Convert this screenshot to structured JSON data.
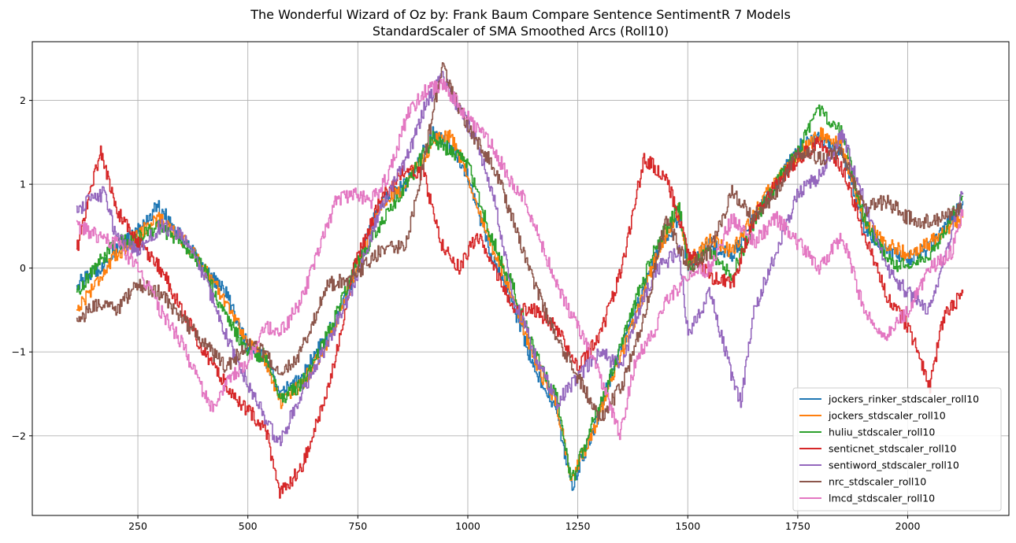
{
  "chart_data": {
    "type": "line",
    "title": "The Wonderful Wizard of Oz by: Frank Baum Compare Sentence SentimentR 7 Models",
    "subtitle": "StandardScaler of SMA Smoothed Arcs (Roll10)",
    "xlabel": "",
    "ylabel": "",
    "xlim": [
      10,
      2230
    ],
    "ylim": [
      -2.95,
      2.7
    ],
    "xticks": [
      250,
      500,
      750,
      1000,
      1250,
      1500,
      1750,
      2000
    ],
    "xtick_labels": [
      "250",
      "500",
      "750",
      "1000",
      "1250",
      "1500",
      "1750",
      "2000"
    ],
    "yticks": [
      2,
      1,
      0,
      -1,
      -2
    ],
    "ytick_labels": [
      "2",
      "1",
      "0",
      "−1",
      "−2"
    ],
    "grid": true,
    "legend_position": "bottom-right",
    "series": [
      {
        "name": "jockers_rinker_stdscaler_roll10",
        "color": "#1f77b4",
        "x": [
          110,
          150,
          200,
          250,
          295,
          350,
          400,
          450,
          500,
          540,
          575,
          620,
          680,
          740,
          800,
          860,
          920,
          960,
          1000,
          1050,
          1100,
          1150,
          1200,
          1235,
          1280,
          1330,
          1380,
          1430,
          1480,
          1500,
          1550,
          1600,
          1650,
          1700,
          1750,
          1800,
          1850,
          1900,
          1950,
          2000,
          2050,
          2125
        ],
        "y": [
          -0.2,
          -0.05,
          0.2,
          0.45,
          0.75,
          0.35,
          0.0,
          -0.3,
          -0.95,
          -1.1,
          -1.5,
          -1.3,
          -0.8,
          -0.1,
          0.8,
          1.0,
          1.6,
          1.5,
          1.1,
          0.2,
          -0.4,
          -1.2,
          -1.7,
          -2.6,
          -2.0,
          -1.2,
          -0.5,
          0.2,
          0.6,
          0.0,
          0.3,
          0.15,
          0.6,
          1.0,
          1.45,
          1.55,
          1.4,
          0.5,
          0.2,
          0.1,
          0.25,
          0.8
        ]
      },
      {
        "name": "jockers_stdscaler_roll10",
        "color": "#ff7f0e",
        "x": [
          110,
          150,
          200,
          250,
          295,
          350,
          400,
          450,
          500,
          540,
          575,
          620,
          680,
          740,
          800,
          860,
          920,
          960,
          1000,
          1050,
          1100,
          1150,
          1200,
          1235,
          1280,
          1330,
          1380,
          1430,
          1480,
          1500,
          1550,
          1600,
          1650,
          1700,
          1750,
          1800,
          1850,
          1900,
          1950,
          2000,
          2050,
          2125
        ],
        "y": [
          -0.5,
          -0.2,
          0.15,
          0.4,
          0.6,
          0.35,
          0.0,
          -0.4,
          -0.9,
          -1.1,
          -1.6,
          -1.4,
          -0.9,
          -0.1,
          0.7,
          1.0,
          1.5,
          1.6,
          1.1,
          0.3,
          -0.3,
          -1.1,
          -1.6,
          -2.5,
          -2.0,
          -1.3,
          -0.6,
          0.2,
          0.7,
          0.05,
          0.35,
          0.2,
          0.65,
          1.05,
          1.35,
          1.6,
          1.45,
          0.55,
          0.3,
          0.15,
          0.3,
          0.6
        ]
      },
      {
        "name": "huliu_stdscaler_roll10",
        "color": "#2ca02c",
        "x": [
          110,
          150,
          200,
          250,
          295,
          350,
          400,
          450,
          500,
          540,
          575,
          620,
          680,
          740,
          800,
          860,
          920,
          960,
          1000,
          1050,
          1100,
          1150,
          1200,
          1235,
          1280,
          1330,
          1380,
          1430,
          1480,
          1500,
          1550,
          1600,
          1650,
          1700,
          1750,
          1800,
          1850,
          1900,
          1950,
          2000,
          2050,
          2125
        ],
        "y": [
          -0.3,
          0.0,
          0.3,
          0.35,
          0.5,
          0.3,
          0.0,
          -0.6,
          -1.0,
          -1.05,
          -1.55,
          -1.4,
          -0.8,
          0.0,
          0.5,
          1.0,
          1.55,
          1.4,
          1.25,
          0.4,
          -0.2,
          -1.0,
          -1.5,
          -2.55,
          -1.9,
          -1.2,
          -0.4,
          0.3,
          0.75,
          0.0,
          0.2,
          -0.1,
          0.55,
          1.0,
          1.4,
          1.9,
          1.6,
          0.6,
          0.1,
          0.0,
          0.15,
          0.85
        ]
      },
      {
        "name": "senticnet_stdscaler_roll10",
        "color": "#d62728",
        "x": [
          110,
          140,
          165,
          200,
          250,
          300,
          350,
          400,
          450,
          500,
          540,
          570,
          620,
          680,
          740,
          800,
          860,
          900,
          940,
          980,
          1020,
          1060,
          1100,
          1150,
          1200,
          1250,
          1300,
          1350,
          1380,
          1400,
          1450,
          1500,
          1550,
          1600,
          1650,
          1700,
          1750,
          1800,
          1850,
          1900,
          1950,
          2000,
          2050,
          2080,
          2125
        ],
        "y": [
          0.2,
          0.9,
          1.4,
          0.7,
          0.3,
          0.0,
          -0.5,
          -1.0,
          -1.4,
          -1.7,
          -1.9,
          -2.7,
          -2.4,
          -1.5,
          0.0,
          0.8,
          1.2,
          1.1,
          0.3,
          0.0,
          0.4,
          0.0,
          -0.5,
          -0.5,
          -0.7,
          -1.2,
          -0.8,
          0.0,
          0.8,
          1.3,
          1.1,
          0.2,
          -0.1,
          -0.2,
          0.6,
          1.0,
          1.3,
          1.5,
          1.2,
          0.4,
          -0.3,
          -0.7,
          -1.4,
          -0.6,
          -0.3
        ]
      },
      {
        "name": "sentiword_stdscaler_roll10",
        "color": "#9467bd",
        "x": [
          110,
          140,
          175,
          200,
          250,
          300,
          350,
          400,
          450,
          500,
          540,
          570,
          620,
          680,
          740,
          800,
          860,
          900,
          940,
          980,
          1020,
          1060,
          1100,
          1150,
          1200,
          1250,
          1300,
          1350,
          1380,
          1430,
          1480,
          1500,
          1550,
          1600,
          1620,
          1650,
          1700,
          1750,
          1800,
          1850,
          1900,
          1950,
          2000,
          2050,
          2125
        ],
        "y": [
          0.7,
          0.8,
          0.9,
          0.35,
          0.2,
          0.5,
          0.4,
          -0.1,
          -0.8,
          -1.4,
          -1.8,
          -2.1,
          -1.5,
          -0.9,
          -0.2,
          0.7,
          1.3,
          1.9,
          2.3,
          1.9,
          1.5,
          0.8,
          -0.3,
          -1.0,
          -1.6,
          -1.3,
          -1.0,
          -1.2,
          -0.6,
          0.0,
          0.2,
          -0.8,
          -0.3,
          -1.3,
          -1.6,
          -0.5,
          0.2,
          0.9,
          1.1,
          1.6,
          0.8,
          0.0,
          -0.3,
          -0.5,
          0.9
        ]
      },
      {
        "name": "nrc_stdscaler_roll10",
        "color": "#8c564b",
        "x": [
          110,
          140,
          175,
          200,
          250,
          300,
          350,
          400,
          450,
          500,
          540,
          570,
          620,
          680,
          740,
          800,
          860,
          900,
          940,
          980,
          1020,
          1060,
          1100,
          1150,
          1200,
          1250,
          1300,
          1350,
          1400,
          1450,
          1500,
          1550,
          1600,
          1650,
          1700,
          1750,
          1800,
          1850,
          1900,
          1950,
          2000,
          2050,
          2125
        ],
        "y": [
          -0.65,
          -0.5,
          -0.4,
          -0.5,
          -0.2,
          -0.3,
          -0.6,
          -0.9,
          -1.2,
          -0.9,
          -1.0,
          -1.3,
          -1.0,
          -0.2,
          -0.1,
          0.2,
          0.3,
          1.3,
          2.4,
          1.9,
          1.5,
          1.2,
          0.6,
          -0.2,
          -0.8,
          -1.3,
          -1.8,
          -1.4,
          -0.6,
          0.6,
          0.0,
          0.2,
          0.9,
          0.6,
          0.9,
          1.4,
          1.3,
          1.4,
          0.7,
          0.8,
          0.6,
          0.55,
          0.7
        ]
      },
      {
        "name": "lmcd_stdscaler_roll10",
        "color": "#e377c2",
        "x": [
          110,
          150,
          200,
          250,
          300,
          350,
          390,
          420,
          460,
          500,
          540,
          570,
          620,
          660,
          700,
          740,
          780,
          820,
          860,
          900,
          940,
          1000,
          1050,
          1100,
          1130,
          1160,
          1200,
          1250,
          1300,
          1345,
          1380,
          1420,
          1450,
          1500,
          1550,
          1600,
          1650,
          1700,
          1750,
          1800,
          1850,
          1900,
          1950,
          2000,
          2050,
          2100,
          2125
        ],
        "y": [
          0.5,
          0.4,
          0.3,
          0.0,
          -0.5,
          -0.9,
          -1.4,
          -1.7,
          -1.3,
          -1.1,
          -0.7,
          -0.8,
          -0.4,
          0.2,
          0.8,
          0.9,
          0.8,
          1.1,
          1.8,
          2.1,
          2.2,
          1.8,
          1.5,
          1.0,
          0.8,
          0.4,
          -0.2,
          -0.7,
          -1.3,
          -2.0,
          -1.1,
          -0.8,
          -0.4,
          -0.1,
          0.0,
          0.6,
          0.3,
          0.6,
          0.3,
          0.0,
          0.4,
          -0.5,
          -0.8,
          -0.5,
          0.0,
          0.2,
          0.7
        ]
      }
    ]
  }
}
